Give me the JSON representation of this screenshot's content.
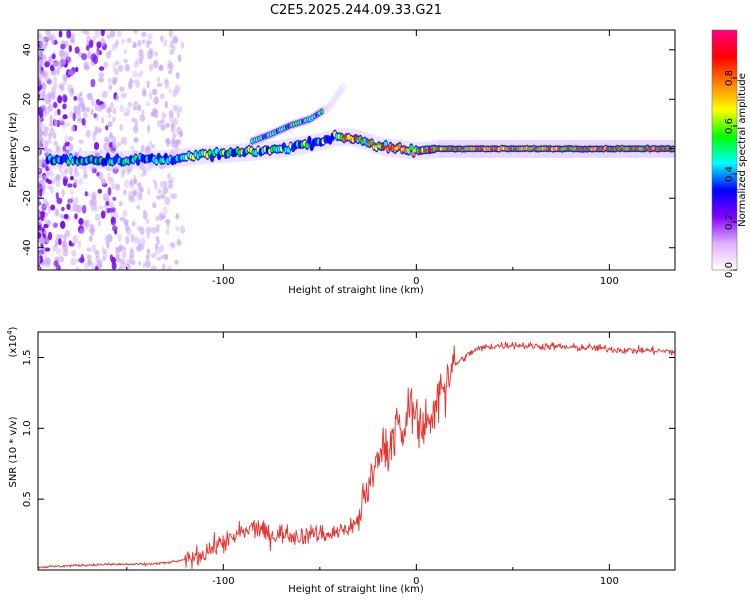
{
  "chart_data": [
    {
      "type": "heatmap",
      "title": "C2E5.2025.244.09.33.G21",
      "xlabel": "Height of straight line (km)",
      "ylabel": "Frequency (Hz)",
      "xlim": [
        -196,
        134
      ],
      "ylim": [
        -49,
        48
      ],
      "xticks": [
        -100,
        0,
        100
      ],
      "xtick_labels": [
        "-100",
        "0",
        "100"
      ],
      "yticks": [
        -40,
        -20,
        0,
        20,
        40
      ],
      "ytick_labels": [
        "-40",
        "-20",
        "0",
        "20",
        "40"
      ],
      "main_trace": {
        "x": [
          -190,
          -170,
          -150,
          -130,
          -110,
          -90,
          -70,
          -50,
          -40,
          -30,
          -20,
          -10,
          0,
          10,
          30,
          60,
          100,
          134
        ],
        "y": [
          -4.5,
          -4.5,
          -4.5,
          -4.2,
          -2.5,
          -1.5,
          0,
          3,
          5,
          4,
          1,
          0,
          -1,
          0,
          0,
          0,
          0,
          0
        ]
      },
      "upper_branch": {
        "x": [
          -85,
          -75,
          -65,
          -55,
          -45,
          -38
        ],
        "y": [
          3,
          6,
          9.5,
          12,
          17,
          25
        ]
      },
      "colorbar": {
        "label": "Normalized spectral amplitude",
        "range": [
          0,
          1
        ],
        "ticks": [
          0.0,
          0.2,
          0.4,
          0.6,
          0.8
        ],
        "tick_labels": [
          "0.0",
          "0.2",
          "0.4",
          "0.6",
          "0.8"
        ],
        "colors": [
          "#ffffff",
          "#e0b0ff",
          "#8000ff",
          "#0000ff",
          "#00ffff",
          "#00ff00",
          "#ffff00",
          "#ff8000",
          "#ff0000",
          "#ff0080"
        ]
      }
    },
    {
      "type": "line",
      "xlabel": "Height of straight line (km)",
      "ylabel": "SNR (10 * v/v)",
      "scale_label": "(x10",
      "scale_exp": "4",
      "xlim": [
        -196,
        134
      ],
      "ylim": [
        0,
        1.68
      ],
      "xticks": [
        -100,
        0,
        100
      ],
      "xtick_labels": [
        "-100",
        "0",
        "100"
      ],
      "yticks": [
        0.5,
        1.0,
        1.5
      ],
      "ytick_labels": [
        "0.5",
        "1.0",
        "1.5"
      ],
      "line_color": "#e8302c",
      "series": [
        {
          "name": "SNR",
          "x": [
            -196,
            -180,
            -160,
            -140,
            -130,
            -120,
            -115,
            -110,
            -105,
            -100,
            -95,
            -90,
            -85,
            -80,
            -75,
            -70,
            -65,
            -60,
            -55,
            -50,
            -45,
            -40,
            -35,
            -30,
            -28,
            -25,
            -22,
            -20,
            -18,
            -15,
            -12,
            -10,
            -7,
            -5,
            -3,
            0,
            2,
            5,
            8,
            10,
            12,
            15,
            18,
            20,
            25,
            30,
            35,
            40,
            50,
            60,
            70,
            80,
            90,
            100,
            110,
            120,
            134
          ],
          "y": [
            0.02,
            0.03,
            0.04,
            0.04,
            0.05,
            0.07,
            0.09,
            0.12,
            0.16,
            0.2,
            0.22,
            0.25,
            0.3,
            0.28,
            0.24,
            0.26,
            0.25,
            0.24,
            0.25,
            0.26,
            0.25,
            0.27,
            0.3,
            0.35,
            0.5,
            0.6,
            0.7,
            0.8,
            0.9,
            0.85,
            1.0,
            1.05,
            0.9,
            1.1,
            1.2,
            1.1,
            1.05,
            1.1,
            1.0,
            1.15,
            1.3,
            1.35,
            1.42,
            1.45,
            1.5,
            1.55,
            1.57,
            1.58,
            1.59,
            1.58,
            1.58,
            1.57,
            1.57,
            1.56,
            1.55,
            1.55,
            1.54
          ]
        }
      ]
    }
  ]
}
